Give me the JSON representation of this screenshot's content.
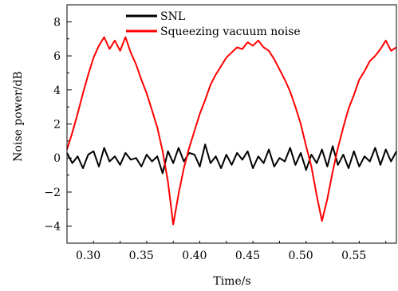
{
  "chart_data": {
    "type": "line",
    "title": "",
    "xlabel": "Time/s",
    "ylabel": "Noise power/dB",
    "xlim": [
      0.28,
      0.59
    ],
    "ylim": [
      -5,
      9
    ],
    "xticks": [
      0.3,
      0.35,
      0.4,
      0.45,
      0.5,
      0.55
    ],
    "xtick_labels": [
      "0.30",
      "0.35",
      "0.40",
      "0.45",
      "0.50",
      "0.55"
    ],
    "yticks": [
      -4,
      -2,
      0,
      2,
      4,
      6,
      8
    ],
    "ytick_labels": [
      "−4",
      "−2",
      "0",
      "2",
      "4",
      "6",
      "8"
    ],
    "grid": false,
    "legend_position": "top-center",
    "series": [
      {
        "name": "SNL",
        "color": "#000000",
        "x": [
          0.28,
          0.285,
          0.29,
          0.295,
          0.3,
          0.305,
          0.31,
          0.315,
          0.32,
          0.325,
          0.33,
          0.335,
          0.34,
          0.345,
          0.35,
          0.355,
          0.36,
          0.365,
          0.37,
          0.375,
          0.38,
          0.385,
          0.39,
          0.395,
          0.4,
          0.405,
          0.41,
          0.415,
          0.42,
          0.425,
          0.43,
          0.435,
          0.44,
          0.445,
          0.45,
          0.455,
          0.46,
          0.465,
          0.47,
          0.475,
          0.48,
          0.485,
          0.49,
          0.495,
          0.5,
          0.505,
          0.51,
          0.515,
          0.52,
          0.525,
          0.53,
          0.535,
          0.54,
          0.545,
          0.55,
          0.555,
          0.56,
          0.565,
          0.57,
          0.575,
          0.58,
          0.585,
          0.59
        ],
        "y": [
          0.3,
          -0.3,
          0.1,
          -0.6,
          0.2,
          0.4,
          -0.5,
          0.6,
          -0.2,
          0.1,
          -0.4,
          0.3,
          -0.1,
          0.0,
          -0.5,
          0.2,
          -0.2,
          0.1,
          -0.9,
          0.4,
          -0.3,
          0.6,
          -0.2,
          0.3,
          0.2,
          -0.5,
          0.8,
          -0.3,
          0.1,
          -0.6,
          0.2,
          -0.4,
          0.3,
          -0.1,
          0.4,
          -0.6,
          0.1,
          -0.3,
          0.5,
          -0.5,
          0.0,
          -0.2,
          0.6,
          -0.4,
          0.3,
          -0.7,
          0.2,
          -0.3,
          0.5,
          -0.5,
          0.7,
          -0.4,
          0.2,
          -0.6,
          0.4,
          -0.5,
          0.1,
          -0.2,
          0.6,
          -0.4,
          0.5,
          -0.2,
          0.4
        ]
      },
      {
        "name": "Squeezing vacuum noise",
        "color": "#ff0000",
        "x": [
          0.28,
          0.285,
          0.29,
          0.295,
          0.3,
          0.305,
          0.31,
          0.315,
          0.32,
          0.325,
          0.33,
          0.335,
          0.34,
          0.345,
          0.35,
          0.355,
          0.36,
          0.365,
          0.37,
          0.375,
          0.38,
          0.385,
          0.39,
          0.395,
          0.4,
          0.405,
          0.41,
          0.415,
          0.42,
          0.425,
          0.43,
          0.435,
          0.44,
          0.445,
          0.45,
          0.455,
          0.46,
          0.465,
          0.47,
          0.475,
          0.48,
          0.485,
          0.49,
          0.495,
          0.5,
          0.505,
          0.51,
          0.515,
          0.52,
          0.525,
          0.53,
          0.535,
          0.54,
          0.545,
          0.55,
          0.555,
          0.56,
          0.565,
          0.57,
          0.575,
          0.58,
          0.585,
          0.59
        ],
        "y": [
          0.5,
          1.5,
          2.6,
          3.8,
          4.9,
          5.9,
          6.6,
          7.1,
          6.4,
          6.9,
          6.3,
          7.1,
          6.2,
          5.5,
          4.6,
          3.8,
          2.8,
          1.8,
          0.4,
          -1.4,
          -3.9,
          -2.1,
          -0.6,
          0.6,
          1.6,
          2.6,
          3.4,
          4.3,
          4.9,
          5.4,
          5.9,
          6.2,
          6.5,
          6.4,
          6.8,
          6.6,
          6.9,
          6.5,
          6.3,
          5.8,
          5.2,
          4.6,
          3.9,
          3.0,
          2.0,
          0.7,
          -0.5,
          -2.2,
          -3.7,
          -2.4,
          -0.8,
          0.6,
          1.8,
          2.9,
          3.7,
          4.6,
          5.1,
          5.7,
          6.0,
          6.4,
          6.9,
          6.3,
          6.5
        ]
      }
    ]
  }
}
